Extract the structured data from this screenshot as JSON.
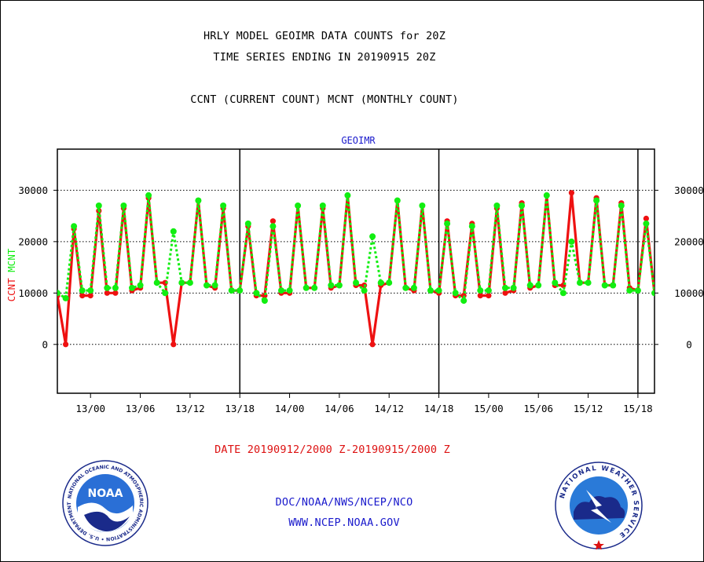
{
  "titles": {
    "line1": "HRLY MODEL GEOIMR DATA COUNTS for 20Z",
    "line2": "TIME SERIES ENDING IN 20190915 20Z",
    "line3": "CCNT (CURRENT COUNT) MCNT (MONTHLY COUNT)"
  },
  "footer": {
    "date_range": "DATE 20190912/2000 Z-20190915/2000 Z",
    "org": "DOC/NOAA/NWS/NCEP/NCO",
    "url": "WWW.NCEP.NOAA.GOV"
  },
  "logos": {
    "noaa_text": "NOAA",
    "noaa_ring": "NATIONAL OCEANIC AND ATMOSPHERIC ADMINISTRATION • U.S. DEPARTMENT OF COMMERCE",
    "nws_ring": "NATIONAL WEATHER SERVICE"
  },
  "colors": {
    "ccnt": "#ee1111",
    "mcnt": "#11ee11",
    "text_blue": "#1a1acc",
    "footer_red": "#dd1111"
  },
  "chart_data": {
    "type": "line",
    "title": "GEOIMR",
    "ylabel_left": "CCNT",
    "ylabel_right": "MCNT",
    "ylim": [
      -9500,
      38000
    ],
    "yticks": [
      0,
      10000,
      20000,
      30000
    ],
    "ytick_labels": [
      "0",
      "10000",
      "20000",
      "30000"
    ],
    "grid": true,
    "x_start": "2019-09-12 20Z",
    "x_end": "2019-09-15 20Z",
    "x_step_hours": 1,
    "xticks": [
      {
        "label": "13/00",
        "hour": 4
      },
      {
        "label": "13/06",
        "hour": 10
      },
      {
        "label": "13/12",
        "hour": 16
      },
      {
        "label": "13/18",
        "hour": 22
      },
      {
        "label": "14/00",
        "hour": 28
      },
      {
        "label": "14/06",
        "hour": 34
      },
      {
        "label": "14/12",
        "hour": 40
      },
      {
        "label": "14/18",
        "hour": 46
      },
      {
        "label": "15/00",
        "hour": 52
      },
      {
        "label": "15/06",
        "hour": 58
      },
      {
        "label": "15/12",
        "hour": 64
      },
      {
        "label": "15/18",
        "hour": 70
      }
    ],
    "day_dividers_hour": [
      22,
      46,
      70
    ],
    "series": [
      {
        "name": "CCNT",
        "color": "#ee1111",
        "style": "solid",
        "values": [
          9500,
          0,
          22500,
          9500,
          9500,
          26000,
          10000,
          10000,
          26500,
          10500,
          11000,
          28500,
          12000,
          12000,
          0,
          12000,
          12000,
          28000,
          11500,
          11000,
          26500,
          10500,
          10500,
          23000,
          9500,
          9500,
          24000,
          10000,
          10000,
          27000,
          11000,
          11000,
          26500,
          11000,
          11500,
          29000,
          11500,
          11500,
          0,
          11500,
          12000,
          28000,
          11000,
          10500,
          27000,
          10500,
          10000,
          24000,
          9500,
          9500,
          23500,
          9500,
          9500,
          26500,
          10000,
          10500,
          27500,
          11000,
          11500,
          29000,
          11500,
          11500,
          29500,
          12000,
          12000,
          28500,
          11500,
          11500,
          27500,
          11000,
          10500,
          24500,
          10000
        ]
      },
      {
        "name": "MCNT",
        "color": "#11ee11",
        "style": "dotted",
        "values": [
          10000,
          9000,
          23000,
          10500,
          10500,
          27000,
          11000,
          11000,
          27000,
          11000,
          11500,
          29000,
          12000,
          10000,
          22000,
          12000,
          12000,
          28000,
          11500,
          11500,
          27000,
          10500,
          10500,
          23500,
          10000,
          8500,
          23000,
          10500,
          10500,
          27000,
          11000,
          11000,
          27000,
          11500,
          11500,
          29000,
          12000,
          10500,
          21000,
          12000,
          12000,
          28000,
          11000,
          11000,
          27000,
          10500,
          10500,
          23500,
          10000,
          8500,
          23000,
          10500,
          10500,
          27000,
          11000,
          11000,
          27000,
          11500,
          11500,
          29000,
          12000,
          10000,
          20000,
          12000,
          12000,
          28000,
          11500,
          11500,
          27000,
          10500,
          10500,
          23500,
          10000
        ]
      }
    ]
  }
}
